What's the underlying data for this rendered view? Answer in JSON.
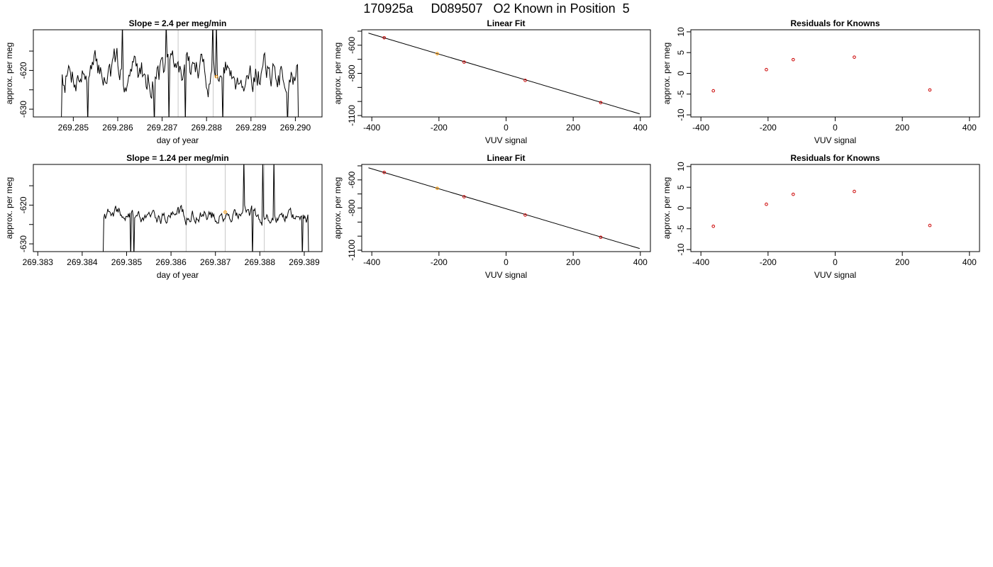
{
  "figure_title": "170925a     D089507   O2 Known in Position  5",
  "chart_data": [
    {
      "type": "line",
      "title": "Slope =  2.4  per meg/min",
      "xlabel": "day of year",
      "ylabel": "approx. per meg",
      "xlim": [
        269.2841,
        269.2906
      ],
      "ylim": [
        -632,
        -609.5
      ],
      "xticks": [
        "269.285",
        "269.286",
        "269.287",
        "269.288",
        "269.289",
        "269.290"
      ],
      "yticks": [
        "-620",
        "-630"
      ],
      "vlines": [
        269.28736,
        269.28815,
        269.2891
      ],
      "marker": {
        "x": 269.28822,
        "y": -621.6,
        "color": "#ff9900"
      },
      "series": [
        {
          "color": "#000000",
          "t_start": 269.28473,
          "t_end": 269.29007,
          "seed": 7,
          "base": -620.5,
          "step": 3.2,
          "clip_low": -632,
          "clip_high": -609.5
        }
      ]
    },
    {
      "type": "scatter",
      "title": "Linear Fit",
      "xlabel": "VUV signal",
      "ylabel": "approx. per meg",
      "xlim": [
        -430,
        430
      ],
      "ylim": [
        -1110,
        -490
      ],
      "xticks": [
        "-400",
        "-200",
        "0",
        "200",
        "400"
      ],
      "yticks": [
        "-600",
        "-800",
        "-1100"
      ],
      "minor_yticks": [
        -500,
        -700,
        -900,
        -1000
      ],
      "fit_line": {
        "x": [
          -410,
          398
        ],
        "y": [
          -514,
          -1088
        ]
      },
      "points": [
        {
          "x": -363,
          "y": -547,
          "color": "#cc0000"
        },
        {
          "x": -205,
          "y": -660,
          "color": "#ff9900"
        },
        {
          "x": -125,
          "y": -720,
          "color": "#cc0000"
        },
        {
          "x": 57,
          "y": -850,
          "color": "#cc0000"
        },
        {
          "x": 282,
          "y": -1008,
          "color": "#cc0000"
        }
      ]
    },
    {
      "type": "scatter",
      "title": "Residuals for Knowns",
      "xlabel": "VUV signal",
      "ylabel": "approx. per meg",
      "xlim": [
        -430,
        430
      ],
      "ylim": [
        -10.5,
        10.5
      ],
      "xticks": [
        "-400",
        "-200",
        "0",
        "200",
        "400"
      ],
      "yticks": [
        "10",
        "5",
        "0",
        "-5",
        "-10"
      ],
      "points": [
        {
          "x": -363,
          "y": -4.2,
          "color": "#cc0000"
        },
        {
          "x": -205,
          "y": 0.9,
          "color": "#cc0000"
        },
        {
          "x": -125,
          "y": 3.3,
          "color": "#cc0000"
        },
        {
          "x": 57,
          "y": 3.9,
          "color": "#cc0000"
        },
        {
          "x": 282,
          "y": -4.0,
          "color": "#cc0000"
        }
      ]
    },
    {
      "type": "line",
      "title": "Slope =  1.24  per meg/min",
      "xlabel": "day of year",
      "ylabel": "approx. per meg",
      "xlim": [
        269.3829,
        269.3894
      ],
      "ylim": [
        -632,
        -609.5
      ],
      "xticks": [
        "269.383",
        "269.384",
        "269.385",
        "269.386",
        "269.387",
        "269.388",
        "269.389"
      ],
      "yticks": [
        "-620",
        "-630"
      ],
      "vlines": [
        269.38634,
        269.38722,
        269.3881
      ],
      "marker": {
        "x": 269.38722,
        "y": -621.8,
        "color": "#ff9900"
      },
      "series": [
        {
          "color": "#000000",
          "t_start": 269.38447,
          "t_end": 269.3891,
          "seed": 19,
          "base": -622.5,
          "step": 1.3,
          "clip_low": -632,
          "clip_high": -609.5
        }
      ]
    },
    {
      "type": "scatter",
      "title": "Linear Fit",
      "xlabel": "VUV signal",
      "ylabel": "approx. per meg",
      "xlim": [
        -430,
        430
      ],
      "ylim": [
        -1110,
        -490
      ],
      "xticks": [
        "-400",
        "-200",
        "0",
        "200",
        "400"
      ],
      "yticks": [
        "-600",
        "-800",
        "-1100"
      ],
      "minor_yticks": [
        -500,
        -700,
        -900,
        -1000
      ],
      "fit_line": {
        "x": [
          -410,
          398
        ],
        "y": [
          -514,
          -1088
        ]
      },
      "points": [
        {
          "x": -363,
          "y": -547,
          "color": "#cc0000"
        },
        {
          "x": -205,
          "y": -660,
          "color": "#ff9900"
        },
        {
          "x": -125,
          "y": -720,
          "color": "#cc0000"
        },
        {
          "x": 57,
          "y": -850,
          "color": "#cc0000"
        },
        {
          "x": 282,
          "y": -1008,
          "color": "#cc0000"
        }
      ]
    },
    {
      "type": "scatter",
      "title": "Residuals for Knowns",
      "xlabel": "VUV signal",
      "ylabel": "approx. per meg",
      "xlim": [
        -430,
        430
      ],
      "ylim": [
        -10.5,
        10.5
      ],
      "xticks": [
        "-400",
        "-200",
        "0",
        "200",
        "400"
      ],
      "yticks": [
        "10",
        "5",
        "0",
        "-5",
        "-10"
      ],
      "points": [
        {
          "x": -363,
          "y": -4.4,
          "color": "#cc0000"
        },
        {
          "x": -205,
          "y": 0.9,
          "color": "#cc0000"
        },
        {
          "x": -125,
          "y": 3.3,
          "color": "#cc0000"
        },
        {
          "x": 57,
          "y": 4.0,
          "color": "#cc0000"
        },
        {
          "x": 282,
          "y": -4.2,
          "color": "#cc0000"
        }
      ]
    }
  ]
}
